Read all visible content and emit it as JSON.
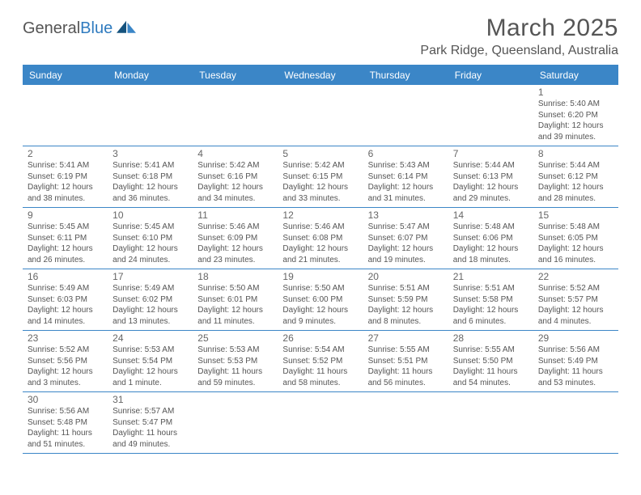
{
  "logo": {
    "word1": "General",
    "word2": "Blue"
  },
  "title": "March 2025",
  "location": "Park Ridge, Queensland, Australia",
  "weekdays": [
    "Sunday",
    "Monday",
    "Tuesday",
    "Wednesday",
    "Thursday",
    "Friday",
    "Saturday"
  ],
  "colors": {
    "header_bg": "#3b86c7",
    "header_text": "#ffffff",
    "border": "#3b86c7",
    "text": "#555555",
    "logo_blue": "#2f7bbf"
  },
  "layout": {
    "columns": 7,
    "first_weekday_index_of_month": 6,
    "days_in_month": 31
  },
  "days": [
    {
      "n": 1,
      "sunrise": "5:40 AM",
      "sunset": "6:20 PM",
      "daylight": "12 hours and 39 minutes."
    },
    {
      "n": 2,
      "sunrise": "5:41 AM",
      "sunset": "6:19 PM",
      "daylight": "12 hours and 38 minutes."
    },
    {
      "n": 3,
      "sunrise": "5:41 AM",
      "sunset": "6:18 PM",
      "daylight": "12 hours and 36 minutes."
    },
    {
      "n": 4,
      "sunrise": "5:42 AM",
      "sunset": "6:16 PM",
      "daylight": "12 hours and 34 minutes."
    },
    {
      "n": 5,
      "sunrise": "5:42 AM",
      "sunset": "6:15 PM",
      "daylight": "12 hours and 33 minutes."
    },
    {
      "n": 6,
      "sunrise": "5:43 AM",
      "sunset": "6:14 PM",
      "daylight": "12 hours and 31 minutes."
    },
    {
      "n": 7,
      "sunrise": "5:44 AM",
      "sunset": "6:13 PM",
      "daylight": "12 hours and 29 minutes."
    },
    {
      "n": 8,
      "sunrise": "5:44 AM",
      "sunset": "6:12 PM",
      "daylight": "12 hours and 28 minutes."
    },
    {
      "n": 9,
      "sunrise": "5:45 AM",
      "sunset": "6:11 PM",
      "daylight": "12 hours and 26 minutes."
    },
    {
      "n": 10,
      "sunrise": "5:45 AM",
      "sunset": "6:10 PM",
      "daylight": "12 hours and 24 minutes."
    },
    {
      "n": 11,
      "sunrise": "5:46 AM",
      "sunset": "6:09 PM",
      "daylight": "12 hours and 23 minutes."
    },
    {
      "n": 12,
      "sunrise": "5:46 AM",
      "sunset": "6:08 PM",
      "daylight": "12 hours and 21 minutes."
    },
    {
      "n": 13,
      "sunrise": "5:47 AM",
      "sunset": "6:07 PM",
      "daylight": "12 hours and 19 minutes."
    },
    {
      "n": 14,
      "sunrise": "5:48 AM",
      "sunset": "6:06 PM",
      "daylight": "12 hours and 18 minutes."
    },
    {
      "n": 15,
      "sunrise": "5:48 AM",
      "sunset": "6:05 PM",
      "daylight": "12 hours and 16 minutes."
    },
    {
      "n": 16,
      "sunrise": "5:49 AM",
      "sunset": "6:03 PM",
      "daylight": "12 hours and 14 minutes."
    },
    {
      "n": 17,
      "sunrise": "5:49 AM",
      "sunset": "6:02 PM",
      "daylight": "12 hours and 13 minutes."
    },
    {
      "n": 18,
      "sunrise": "5:50 AM",
      "sunset": "6:01 PM",
      "daylight": "12 hours and 11 minutes."
    },
    {
      "n": 19,
      "sunrise": "5:50 AM",
      "sunset": "6:00 PM",
      "daylight": "12 hours and 9 minutes."
    },
    {
      "n": 20,
      "sunrise": "5:51 AM",
      "sunset": "5:59 PM",
      "daylight": "12 hours and 8 minutes."
    },
    {
      "n": 21,
      "sunrise": "5:51 AM",
      "sunset": "5:58 PM",
      "daylight": "12 hours and 6 minutes."
    },
    {
      "n": 22,
      "sunrise": "5:52 AM",
      "sunset": "5:57 PM",
      "daylight": "12 hours and 4 minutes."
    },
    {
      "n": 23,
      "sunrise": "5:52 AM",
      "sunset": "5:56 PM",
      "daylight": "12 hours and 3 minutes."
    },
    {
      "n": 24,
      "sunrise": "5:53 AM",
      "sunset": "5:54 PM",
      "daylight": "12 hours and 1 minute."
    },
    {
      "n": 25,
      "sunrise": "5:53 AM",
      "sunset": "5:53 PM",
      "daylight": "11 hours and 59 minutes."
    },
    {
      "n": 26,
      "sunrise": "5:54 AM",
      "sunset": "5:52 PM",
      "daylight": "11 hours and 58 minutes."
    },
    {
      "n": 27,
      "sunrise": "5:55 AM",
      "sunset": "5:51 PM",
      "daylight": "11 hours and 56 minutes."
    },
    {
      "n": 28,
      "sunrise": "5:55 AM",
      "sunset": "5:50 PM",
      "daylight": "11 hours and 54 minutes."
    },
    {
      "n": 29,
      "sunrise": "5:56 AM",
      "sunset": "5:49 PM",
      "daylight": "11 hours and 53 minutes."
    },
    {
      "n": 30,
      "sunrise": "5:56 AM",
      "sunset": "5:48 PM",
      "daylight": "11 hours and 51 minutes."
    },
    {
      "n": 31,
      "sunrise": "5:57 AM",
      "sunset": "5:47 PM",
      "daylight": "11 hours and 49 minutes."
    }
  ],
  "labels": {
    "sunrise_prefix": "Sunrise: ",
    "sunset_prefix": "Sunset: ",
    "daylight_prefix": "Daylight: "
  }
}
